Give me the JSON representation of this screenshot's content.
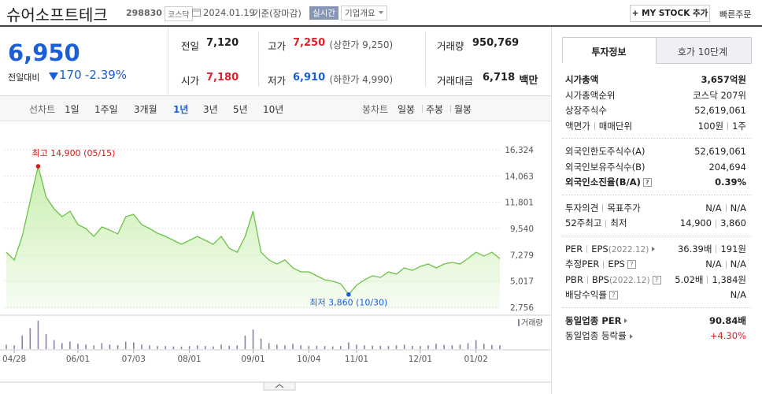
{
  "header": {
    "title": "슈어소프트테크",
    "code": "298830",
    "market": "코스닥",
    "date": "2024.01.19",
    "basis": "기준(장마감)",
    "realtime": "실시간",
    "overview": "기업개요",
    "my_stock": "+ MY STOCK 추가",
    "quick_order": "빠른주문"
  },
  "quote": {
    "price": "6,950",
    "change_label": "전일대비",
    "change": "170",
    "change_rate": "-2.39%",
    "color": "#1a5fd8",
    "cells": [
      {
        "label": "전일",
        "value": "7,120",
        "color": "#222222"
      },
      {
        "label": "고가",
        "value": "7,250",
        "extra": "(상한가 9,250)",
        "color": "#e0202a"
      },
      {
        "label": "거래량",
        "value": "950,769",
        "color": "#222222"
      },
      {
        "label": "시가",
        "value": "7,180",
        "color": "#e0202a"
      },
      {
        "label": "저가",
        "value": "6,910",
        "extra": "(하한가 4,990)",
        "color": "#1a5fd8"
      },
      {
        "label": "거래대금",
        "value": "6,718",
        "unit": "백만",
        "color": "#222222"
      }
    ]
  },
  "chart_tabs": {
    "line": "선차트",
    "periods": [
      "1일",
      "1주일",
      "3개월",
      "1년",
      "3년",
      "5년",
      "10년"
    ],
    "selected": 3,
    "candle": "봉차트",
    "candle_periods": [
      "일봉",
      "주봉",
      "월봉"
    ]
  },
  "chart_data": {
    "type": "area",
    "color": "#6cc24a",
    "fill": "#c9efb0",
    "categories": [
      null,
      "04/28",
      null,
      null,
      null,
      null,
      null,
      null,
      null,
      "06/01",
      null,
      null,
      null,
      null,
      null,
      null,
      "07/03",
      null,
      null,
      null,
      null,
      null,
      null,
      "08/01",
      null,
      null,
      null,
      null,
      null,
      null,
      null,
      "09/01",
      null,
      null,
      null,
      null,
      null,
      null,
      "10/04",
      null,
      null,
      null,
      null,
      null,
      "11/01",
      null,
      null,
      null,
      null,
      null,
      null,
      null,
      "12/01",
      null,
      null,
      null,
      null,
      null,
      null,
      "01/02",
      null,
      null,
      null
    ],
    "values": [
      7500,
      6830,
      8860,
      11910,
      14900,
      12250,
      11240,
      10560,
      11030,
      9880,
      9540,
      8860,
      9680,
      9400,
      9070,
      10560,
      10760,
      9880,
      9540,
      9130,
      8860,
      8520,
      8180,
      8520,
      8860,
      8520,
      8180,
      8860,
      7840,
      7500,
      8860,
      11030,
      7500,
      6830,
      6490,
      6830,
      6150,
      5810,
      5810,
      5470,
      5130,
      5000,
      4790,
      3860,
      4660,
      5130,
      5470,
      5330,
      5810,
      5610,
      6150,
      5940,
      6280,
      6490,
      6150,
      6490,
      6620,
      6490,
      6960,
      7500,
      7170,
      7500,
      6950
    ],
    "ylim": [
      2756,
      16324
    ],
    "yticks": [
      {
        "value": 2756,
        "label": "2,756"
      },
      {
        "value": 5017,
        "label": "5,017"
      },
      {
        "value": 7279,
        "label": "7,279"
      },
      {
        "value": 9540,
        "label": "9,540"
      },
      {
        "value": 11801,
        "label": "11,801"
      },
      {
        "value": 14063,
        "label": "14,063"
      },
      {
        "value": 16324,
        "label": "16,324"
      }
    ],
    "annotations": [
      {
        "text": "최고 14,900 (05/15)",
        "value": 14900,
        "color": "#d81818",
        "kind": "max"
      },
      {
        "text": "최저 3,860 (10/30)",
        "value": 3860,
        "color": "#1a5fd8",
        "kind": "min"
      }
    ],
    "volume": {
      "name": "거래량",
      "color": "#8d80a8",
      "ylim": [
        0,
        2000000
      ],
      "values": [
        300000,
        250000,
        900000,
        1400000,
        1900000,
        1000000,
        600000,
        400000,
        500000,
        350000,
        300000,
        250000,
        400000,
        300000,
        250000,
        500000,
        450000,
        300000,
        250000,
        200000,
        200000,
        180000,
        170000,
        200000,
        250000,
        200000,
        180000,
        300000,
        220000,
        250000,
        900000,
        1300000,
        700000,
        400000,
        300000,
        250000,
        350000,
        250000,
        200000,
        220000,
        200000,
        180000,
        200000,
        450000,
        300000,
        250000,
        230000,
        220000,
        200000,
        250000,
        300000,
        220000,
        200000,
        250000,
        350000,
        280000,
        250000,
        300000,
        400000,
        600000,
        350000,
        280000,
        250000
      ]
    }
  },
  "side": {
    "tabs": [
      "투자정보",
      "호가 10단계"
    ],
    "selected": 0,
    "help": "?",
    "groups": [
      [
        {
          "label": [
            "시가총액"
          ],
          "value": [
            "3,657억원"
          ],
          "strong": true
        },
        {
          "label": [
            "시가총액순위"
          ],
          "value": [
            "코스닥 207위"
          ]
        },
        {
          "label": [
            "상장주식수"
          ],
          "value": [
            "52,619,061"
          ]
        },
        {
          "label": [
            "액면가",
            "매매단위"
          ],
          "value": [
            "100원",
            "1주"
          ]
        }
      ],
      [
        {
          "label": [
            "외국인한도주식수(A)"
          ],
          "value": [
            "52,619,061"
          ]
        },
        {
          "label": [
            "외국인보유주식수(B)"
          ],
          "value": [
            "204,694"
          ]
        },
        {
          "label": [
            "외국인소진율(B/A)"
          ],
          "value": [
            "0.39%"
          ],
          "strong": true,
          "help": true
        }
      ],
      [
        {
          "label": [
            "투자의견",
            "목표주가"
          ],
          "value": [
            "N/A",
            "N/A"
          ]
        },
        {
          "label": [
            "52주최고",
            "최저"
          ],
          "value": [
            "14,900",
            "3,860"
          ]
        }
      ],
      [
        {
          "label": [
            "PER",
            "EPS"
          ],
          "note": "(2022.12)",
          "value": [
            "36.39배",
            "191원"
          ],
          "arrow": true
        },
        {
          "label": [
            "추정PER",
            "EPS"
          ],
          "value": [
            "N/A",
            "N/A"
          ],
          "help": true
        },
        {
          "label": [
            "PBR",
            "BPS"
          ],
          "note": "(2022.12)",
          "value": [
            "5.02배",
            "1,384원"
          ],
          "help": true
        },
        {
          "label": [
            "배당수익률"
          ],
          "value": [
            "N/A"
          ],
          "help": true
        }
      ],
      [
        {
          "label": [
            "동일업종 PER"
          ],
          "value": [
            "90.84배"
          ],
          "strong": true,
          "arrow": true
        },
        {
          "label": [
            "동일업종 등락률"
          ],
          "value": [
            "+4.30%"
          ],
          "arrow": true,
          "color": "#e0202a"
        }
      ]
    ]
  }
}
